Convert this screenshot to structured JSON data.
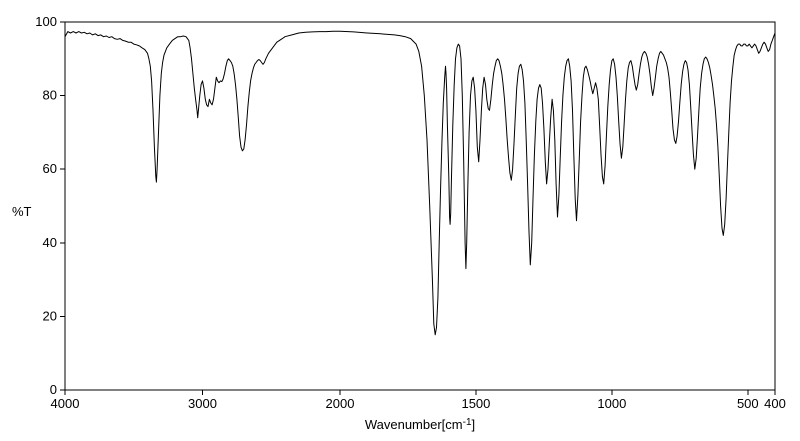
{
  "chart_data": {
    "type": "line",
    "description": "Infrared transmittance spectrum, single black trace on white background with full box frame",
    "xlabel": "Wavenumber[cm-1]",
    "xlabel_base": "Wavenumber[cm",
    "xlabel_sup": "-1",
    "xlabel_close": "]",
    "ylabel": "%T",
    "x_ticks": [
      4000,
      3000,
      2000,
      1500,
      1000,
      500,
      400
    ],
    "y_ticks": [
      0,
      20,
      40,
      60,
      80,
      100
    ],
    "x_range": [
      4000,
      400
    ],
    "y_range": [
      0,
      100
    ],
    "axis_break_at": 2000,
    "axis_break_note": "x scale expands 2x below 2000 cm-1",
    "line_color": "#000000",
    "frame_color": "#000000",
    "background": "#ffffff",
    "major_peaks": [
      [
        3335,
        56
      ],
      [
        3035,
        74
      ],
      [
        2960,
        77
      ],
      [
        2710,
        65
      ],
      [
        1650,
        15
      ],
      [
        1595,
        45
      ],
      [
        1537,
        33
      ],
      [
        1490,
        62
      ],
      [
        1370,
        57
      ],
      [
        1300,
        34
      ],
      [
        1240,
        56
      ],
      [
        1200,
        47
      ],
      [
        1130,
        46
      ],
      [
        1030,
        56
      ],
      [
        965,
        63
      ],
      [
        850,
        80
      ],
      [
        765,
        67
      ],
      [
        695,
        60
      ],
      [
        590,
        42
      ]
    ],
    "points": [
      [
        4000,
        96.0
      ],
      [
        3980,
        97.4
      ],
      [
        3960,
        97.0
      ],
      [
        3940,
        97.4
      ],
      [
        3920,
        97.0
      ],
      [
        3900,
        97.4
      ],
      [
        3880,
        97.0
      ],
      [
        3860,
        97.2
      ],
      [
        3840,
        96.8
      ],
      [
        3820,
        97.0
      ],
      [
        3800,
        96.5
      ],
      [
        3780,
        96.8
      ],
      [
        3760,
        96.3
      ],
      [
        3740,
        96.5
      ],
      [
        3720,
        96.0
      ],
      [
        3700,
        96.2
      ],
      [
        3680,
        95.8
      ],
      [
        3660,
        96.0
      ],
      [
        3640,
        95.5
      ],
      [
        3620,
        95.3
      ],
      [
        3600,
        95.5
      ],
      [
        3580,
        95.0
      ],
      [
        3560,
        94.8
      ],
      [
        3540,
        94.5
      ],
      [
        3520,
        94.5
      ],
      [
        3500,
        94.0
      ],
      [
        3480,
        93.8
      ],
      [
        3460,
        93.5
      ],
      [
        3440,
        93.0
      ],
      [
        3420,
        92.5
      ],
      [
        3400,
        91.5
      ],
      [
        3390,
        90.0
      ],
      [
        3380,
        88.0
      ],
      [
        3370,
        84.0
      ],
      [
        3360,
        76.0
      ],
      [
        3350,
        66.0
      ],
      [
        3340,
        58.0
      ],
      [
        3335,
        56.5
      ],
      [
        3330,
        60.0
      ],
      [
        3320,
        70.0
      ],
      [
        3310,
        80.0
      ],
      [
        3300,
        86.0
      ],
      [
        3290,
        89.0
      ],
      [
        3280,
        91.0
      ],
      [
        3260,
        93.0
      ],
      [
        3240,
        94.0
      ],
      [
        3220,
        95.0
      ],
      [
        3200,
        95.5
      ],
      [
        3180,
        96.0
      ],
      [
        3160,
        96.0
      ],
      [
        3140,
        96.2
      ],
      [
        3120,
        96.0
      ],
      [
        3100,
        95.0
      ],
      [
        3090,
        93.0
      ],
      [
        3080,
        90.0
      ],
      [
        3070,
        86.0
      ],
      [
        3060,
        82.0
      ],
      [
        3050,
        79.0
      ],
      [
        3040,
        76.0
      ],
      [
        3035,
        74.0
      ],
      [
        3030,
        76.0
      ],
      [
        3020,
        80.0
      ],
      [
        3010,
        83.0
      ],
      [
        3000,
        84.0
      ],
      [
        2990,
        82.0
      ],
      [
        2980,
        79.0
      ],
      [
        2970,
        77.5
      ],
      [
        2960,
        77.0
      ],
      [
        2950,
        79.0
      ],
      [
        2940,
        78.0
      ],
      [
        2930,
        77.5
      ],
      [
        2920,
        79.0
      ],
      [
        2910,
        82.0
      ],
      [
        2900,
        85.0
      ],
      [
        2890,
        84.0
      ],
      [
        2880,
        83.5
      ],
      [
        2870,
        84.0
      ],
      [
        2860,
        83.8
      ],
      [
        2850,
        84.5
      ],
      [
        2840,
        86.0
      ],
      [
        2830,
        88.0
      ],
      [
        2820,
        89.5
      ],
      [
        2810,
        90.0
      ],
      [
        2800,
        89.5
      ],
      [
        2790,
        89.0
      ],
      [
        2780,
        88.0
      ],
      [
        2770,
        86.0
      ],
      [
        2760,
        83.0
      ],
      [
        2750,
        79.0
      ],
      [
        2740,
        74.0
      ],
      [
        2730,
        69.0
      ],
      [
        2720,
        66.0
      ],
      [
        2710,
        65.0
      ],
      [
        2700,
        65.5
      ],
      [
        2690,
        68.0
      ],
      [
        2680,
        72.0
      ],
      [
        2670,
        77.0
      ],
      [
        2660,
        81.0
      ],
      [
        2650,
        84.0
      ],
      [
        2640,
        86.0
      ],
      [
        2630,
        87.5
      ],
      [
        2620,
        88.5
      ],
      [
        2610,
        89.0
      ],
      [
        2600,
        89.5
      ],
      [
        2590,
        89.8
      ],
      [
        2580,
        89.5
      ],
      [
        2570,
        89.0
      ],
      [
        2560,
        88.5
      ],
      [
        2550,
        89.0
      ],
      [
        2540,
        90.0
      ],
      [
        2520,
        91.5
      ],
      [
        2500,
        92.5
      ],
      [
        2480,
        93.5
      ],
      [
        2460,
        94.5
      ],
      [
        2440,
        95.0
      ],
      [
        2420,
        95.5
      ],
      [
        2400,
        96.0
      ],
      [
        2350,
        96.5
      ],
      [
        2300,
        97.0
      ],
      [
        2250,
        97.2
      ],
      [
        2200,
        97.3
      ],
      [
        2150,
        97.4
      ],
      [
        2100,
        97.4
      ],
      [
        2050,
        97.5
      ],
      [
        2000,
        97.5
      ],
      [
        1950,
        97.3
      ],
      [
        1900,
        97.0
      ],
      [
        1850,
        96.8
      ],
      [
        1800,
        96.5
      ],
      [
        1780,
        96.3
      ],
      [
        1760,
        96.0
      ],
      [
        1740,
        95.5
      ],
      [
        1720,
        94.0
      ],
      [
        1710,
        92.0
      ],
      [
        1700,
        88.0
      ],
      [
        1690,
        80.0
      ],
      [
        1680,
        68.0
      ],
      [
        1670,
        50.0
      ],
      [
        1660,
        30.0
      ],
      [
        1655,
        18.0
      ],
      [
        1650,
        15.0
      ],
      [
        1645,
        17.0
      ],
      [
        1640,
        25.0
      ],
      [
        1635,
        40.0
      ],
      [
        1630,
        55.0
      ],
      [
        1625,
        68.0
      ],
      [
        1620,
        78.0
      ],
      [
        1615,
        85.0
      ],
      [
        1612,
        88.0
      ],
      [
        1610,
        86.0
      ],
      [
        1608,
        82.0
      ],
      [
        1605,
        72.0
      ],
      [
        1600,
        58.0
      ],
      [
        1597,
        47.0
      ],
      [
        1595,
        45.0
      ],
      [
        1593,
        48.0
      ],
      [
        1590,
        58.0
      ],
      [
        1585,
        72.0
      ],
      [
        1580,
        83.0
      ],
      [
        1575,
        90.0
      ],
      [
        1570,
        93.0
      ],
      [
        1565,
        94.0
      ],
      [
        1560,
        93.5
      ],
      [
        1555,
        90.0
      ],
      [
        1550,
        80.0
      ],
      [
        1545,
        62.0
      ],
      [
        1540,
        40.0
      ],
      [
        1537,
        33.0
      ],
      [
        1534,
        40.0
      ],
      [
        1530,
        55.0
      ],
      [
        1525,
        70.0
      ],
      [
        1520,
        80.0
      ],
      [
        1515,
        84.0
      ],
      [
        1510,
        85.0
      ],
      [
        1505,
        82.0
      ],
      [
        1500,
        76.0
      ],
      [
        1495,
        66.0
      ],
      [
        1490,
        62.0
      ],
      [
        1485,
        68.0
      ],
      [
        1480,
        76.0
      ],
      [
        1475,
        82.0
      ],
      [
        1470,
        85.0
      ],
      [
        1465,
        83.0
      ],
      [
        1460,
        79.0
      ],
      [
        1455,
        76.5
      ],
      [
        1450,
        76.0
      ],
      [
        1445,
        79.0
      ],
      [
        1440,
        83.0
      ],
      [
        1435,
        86.0
      ],
      [
        1430,
        88.0
      ],
      [
        1425,
        89.5
      ],
      [
        1420,
        90.0
      ],
      [
        1415,
        89.5
      ],
      [
        1410,
        88.0
      ],
      [
        1405,
        86.0
      ],
      [
        1400,
        83.0
      ],
      [
        1395,
        79.0
      ],
      [
        1390,
        74.0
      ],
      [
        1385,
        68.0
      ],
      [
        1380,
        63.0
      ],
      [
        1375,
        59.0
      ],
      [
        1370,
        57.0
      ],
      [
        1365,
        60.0
      ],
      [
        1360,
        67.0
      ],
      [
        1355,
        75.0
      ],
      [
        1350,
        82.0
      ],
      [
        1345,
        86.0
      ],
      [
        1340,
        88.0
      ],
      [
        1335,
        88.5
      ],
      [
        1330,
        87.0
      ],
      [
        1325,
        84.0
      ],
      [
        1320,
        78.0
      ],
      [
        1315,
        68.0
      ],
      [
        1310,
        56.0
      ],
      [
        1305,
        43.0
      ],
      [
        1300,
        34.0
      ],
      [
        1295,
        40.0
      ],
      [
        1290,
        52.0
      ],
      [
        1285,
        64.0
      ],
      [
        1280,
        73.0
      ],
      [
        1275,
        79.0
      ],
      [
        1270,
        82.0
      ],
      [
        1265,
        83.0
      ],
      [
        1260,
        82.0
      ],
      [
        1255,
        78.0
      ],
      [
        1250,
        71.0
      ],
      [
        1245,
        62.0
      ],
      [
        1240,
        56.0
      ],
      [
        1235,
        60.0
      ],
      [
        1230,
        67.0
      ],
      [
        1225,
        74.0
      ],
      [
        1220,
        79.0
      ],
      [
        1215,
        76.0
      ],
      [
        1210,
        68.0
      ],
      [
        1205,
        56.0
      ],
      [
        1200,
        47.0
      ],
      [
        1195,
        53.0
      ],
      [
        1190,
        63.0
      ],
      [
        1185,
        73.0
      ],
      [
        1180,
        80.0
      ],
      [
        1175,
        85.0
      ],
      [
        1170,
        88.0
      ],
      [
        1165,
        89.5
      ],
      [
        1160,
        90.0
      ],
      [
        1155,
        88.0
      ],
      [
        1150,
        84.0
      ],
      [
        1145,
        76.0
      ],
      [
        1140,
        64.0
      ],
      [
        1135,
        52.0
      ],
      [
        1130,
        46.0
      ],
      [
        1125,
        53.0
      ],
      [
        1120,
        63.0
      ],
      [
        1115,
        73.0
      ],
      [
        1110,
        80.0
      ],
      [
        1105,
        85.0
      ],
      [
        1100,
        87.5
      ],
      [
        1095,
        88.0
      ],
      [
        1090,
        87.0
      ],
      [
        1085,
        85.5
      ],
      [
        1080,
        84.0
      ],
      [
        1075,
        82.0
      ],
      [
        1070,
        80.5
      ],
      [
        1065,
        82.0
      ],
      [
        1060,
        83.5
      ],
      [
        1055,
        82.0
      ],
      [
        1050,
        79.0
      ],
      [
        1045,
        72.0
      ],
      [
        1040,
        64.0
      ],
      [
        1035,
        58.0
      ],
      [
        1030,
        56.0
      ],
      [
        1025,
        61.0
      ],
      [
        1020,
        69.0
      ],
      [
        1015,
        77.0
      ],
      [
        1010,
        83.0
      ],
      [
        1005,
        87.0
      ],
      [
        1000,
        89.5
      ],
      [
        995,
        90.0
      ],
      [
        990,
        88.5
      ],
      [
        985,
        85.0
      ],
      [
        980,
        80.0
      ],
      [
        975,
        73.0
      ],
      [
        970,
        67.0
      ],
      [
        965,
        63.0
      ],
      [
        960,
        66.0
      ],
      [
        955,
        72.0
      ],
      [
        950,
        79.0
      ],
      [
        945,
        84.0
      ],
      [
        940,
        87.5
      ],
      [
        935,
        89.0
      ],
      [
        930,
        89.5
      ],
      [
        925,
        88.0
      ],
      [
        920,
        85.5
      ],
      [
        915,
        83.0
      ],
      [
        910,
        81.5
      ],
      [
        905,
        83.0
      ],
      [
        900,
        86.0
      ],
      [
        895,
        88.5
      ],
      [
        890,
        90.5
      ],
      [
        885,
        91.5
      ],
      [
        880,
        92.0
      ],
      [
        875,
        91.5
      ],
      [
        870,
        90.5
      ],
      [
        865,
        88.5
      ],
      [
        860,
        86.0
      ],
      [
        855,
        82.5
      ],
      [
        850,
        80.0
      ],
      [
        845,
        82.0
      ],
      [
        840,
        85.0
      ],
      [
        835,
        88.0
      ],
      [
        830,
        90.0
      ],
      [
        825,
        91.5
      ],
      [
        820,
        92.0
      ],
      [
        815,
        91.5
      ],
      [
        810,
        91.0
      ],
      [
        805,
        90.0
      ],
      [
        800,
        89.0
      ],
      [
        795,
        87.5
      ],
      [
        790,
        85.0
      ],
      [
        785,
        81.0
      ],
      [
        780,
        76.0
      ],
      [
        775,
        71.0
      ],
      [
        770,
        68.0
      ],
      [
        765,
        67.0
      ],
      [
        760,
        69.0
      ],
      [
        755,
        73.0
      ],
      [
        750,
        78.0
      ],
      [
        745,
        83.0
      ],
      [
        740,
        86.5
      ],
      [
        735,
        88.5
      ],
      [
        730,
        89.5
      ],
      [
        725,
        89.0
      ],
      [
        720,
        87.0
      ],
      [
        715,
        83.0
      ],
      [
        710,
        77.0
      ],
      [
        705,
        70.0
      ],
      [
        700,
        64.0
      ],
      [
        695,
        60.0
      ],
      [
        690,
        63.0
      ],
      [
        685,
        69.0
      ],
      [
        680,
        76.0
      ],
      [
        675,
        82.0
      ],
      [
        670,
        86.0
      ],
      [
        665,
        88.5
      ],
      [
        660,
        90.0
      ],
      [
        655,
        90.5
      ],
      [
        650,
        90.0
      ],
      [
        645,
        89.0
      ],
      [
        640,
        87.5
      ],
      [
        635,
        85.5
      ],
      [
        630,
        83.0
      ],
      [
        625,
        80.0
      ],
      [
        620,
        76.5
      ],
      [
        615,
        72.0
      ],
      [
        610,
        66.0
      ],
      [
        605,
        58.0
      ],
      [
        600,
        50.0
      ],
      [
        595,
        44.0
      ],
      [
        590,
        42.0
      ],
      [
        585,
        45.0
      ],
      [
        580,
        52.0
      ],
      [
        575,
        61.0
      ],
      [
        570,
        70.0
      ],
      [
        565,
        78.0
      ],
      [
        560,
        84.0
      ],
      [
        555,
        88.0
      ],
      [
        550,
        91.0
      ],
      [
        545,
        92.5
      ],
      [
        540,
        93.5
      ],
      [
        535,
        94.0
      ],
      [
        530,
        94.0
      ],
      [
        525,
        93.5
      ],
      [
        520,
        93.5
      ],
      [
        515,
        94.0
      ],
      [
        510,
        94.0
      ],
      [
        505,
        93.5
      ],
      [
        500,
        93.5
      ],
      [
        495,
        94.0
      ],
      [
        490,
        93.5
      ],
      [
        485,
        93.0
      ],
      [
        480,
        93.5
      ],
      [
        475,
        94.0
      ],
      [
        470,
        93.5
      ],
      [
        465,
        92.5
      ],
      [
        460,
        91.5
      ],
      [
        455,
        92.0
      ],
      [
        450,
        93.0
      ],
      [
        445,
        94.0
      ],
      [
        440,
        94.5
      ],
      [
        435,
        94.0
      ],
      [
        430,
        93.0
      ],
      [
        425,
        92.0
      ],
      [
        420,
        92.5
      ],
      [
        415,
        94.0
      ],
      [
        410,
        95.0
      ],
      [
        405,
        96.0
      ],
      [
        400,
        97.0
      ]
    ]
  }
}
